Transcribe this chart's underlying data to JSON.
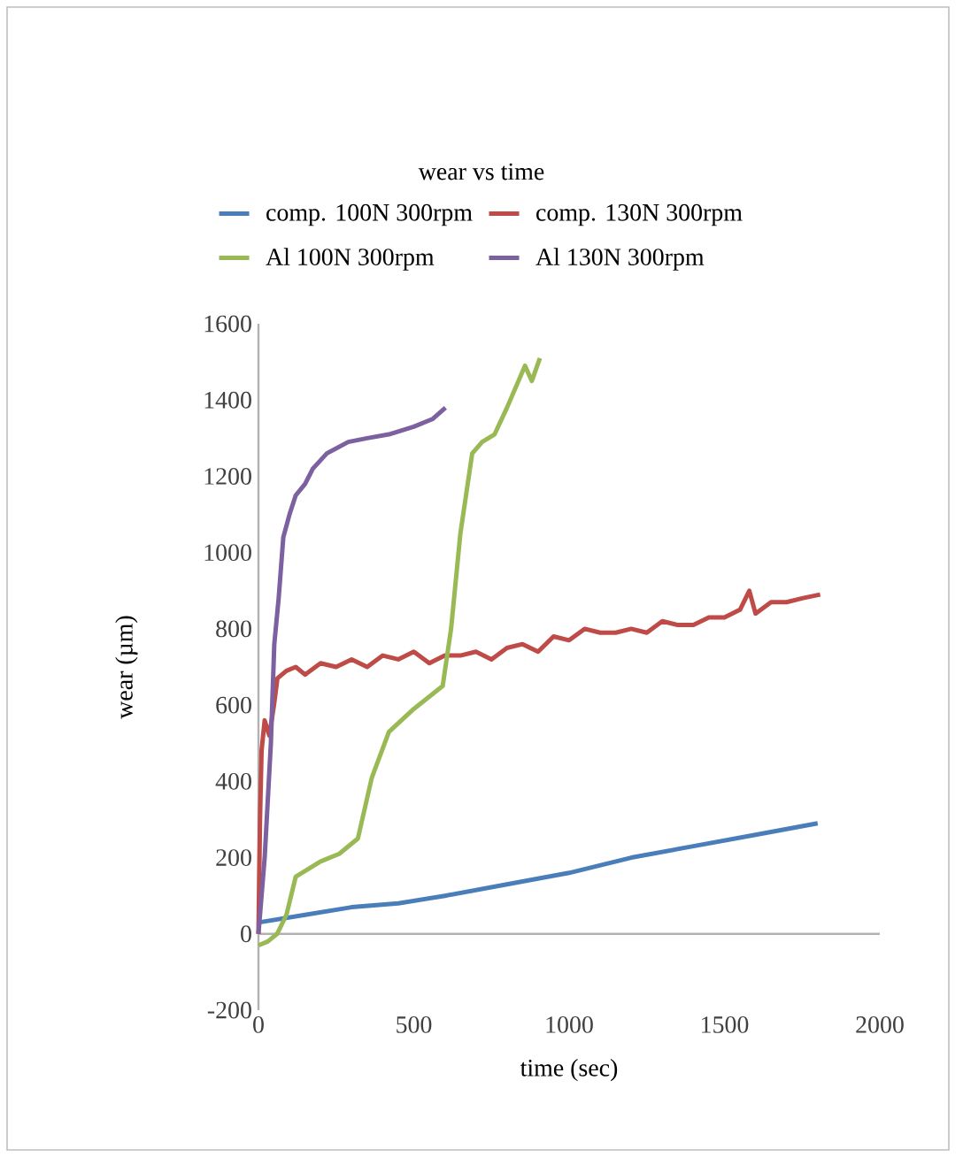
{
  "chart_data": {
    "type": "line",
    "title": "wear vs time",
    "xlabel": "time (sec)",
    "ylabel": "wear (µm)",
    "xlim": [
      0,
      2000
    ],
    "ylim": [
      -200,
      1600
    ],
    "xticks": [
      0,
      500,
      1000,
      1500,
      2000
    ],
    "yticks": [
      -200,
      0,
      200,
      400,
      600,
      800,
      1000,
      1200,
      1400,
      1600
    ],
    "legend": "top",
    "marker": "none",
    "line_style": "solid",
    "series": [
      {
        "name": "comp. 100N 300rpm",
        "color": "#4a7ebb",
        "x": [
          0,
          150,
          300,
          450,
          600,
          800,
          1000,
          1200,
          1400,
          1600,
          1800
        ],
        "values": [
          30,
          50,
          70,
          80,
          100,
          130,
          160,
          200,
          230,
          260,
          290
        ]
      },
      {
        "name": "comp. 130N 300rpm",
        "color": "#be4b48",
        "x": [
          0,
          5,
          10,
          20,
          35,
          50,
          61,
          90,
          120,
          150,
          200,
          250,
          300,
          350,
          400,
          450,
          500,
          550,
          600,
          650,
          700,
          750,
          800,
          850,
          900,
          950,
          1000,
          1050,
          1100,
          1150,
          1200,
          1250,
          1300,
          1350,
          1400,
          1450,
          1500,
          1550,
          1580,
          1600,
          1650,
          1700,
          1750,
          1808
        ],
        "values": [
          0,
          300,
          480,
          560,
          520,
          600,
          670,
          690,
          700,
          680,
          710,
          700,
          720,
          700,
          730,
          720,
          740,
          710,
          730,
          730,
          740,
          720,
          750,
          760,
          740,
          780,
          770,
          800,
          790,
          790,
          800,
          790,
          820,
          810,
          810,
          830,
          830,
          850,
          900,
          840,
          870,
          870,
          880,
          890
        ]
      },
      {
        "name": "Al 100N 300rpm",
        "color": "#98b954",
        "x": [
          0,
          30,
          60,
          90,
          120,
          160,
          200,
          260,
          320,
          365,
          420,
          500,
          593,
          620,
          650,
          688,
          720,
          760,
          800,
          858,
          880,
          906
        ],
        "values": [
          -30,
          -20,
          0,
          50,
          150,
          170,
          190,
          210,
          250,
          410,
          530,
          590,
          650,
          800,
          1050,
          1260,
          1290,
          1310,
          1380,
          1490,
          1450,
          1510
        ]
      },
      {
        "name": "Al 130N 300rpm",
        "color": "#7d60a0",
        "x": [
          0,
          20,
          40,
          51,
          65,
          80,
          100,
          120,
          150,
          175,
          220,
          289,
          350,
          420,
          500,
          560,
          602
        ],
        "values": [
          0,
          200,
          500,
          760,
          880,
          1040,
          1100,
          1150,
          1180,
          1220,
          1260,
          1290,
          1300,
          1310,
          1330,
          1350,
          1380
        ]
      }
    ]
  }
}
